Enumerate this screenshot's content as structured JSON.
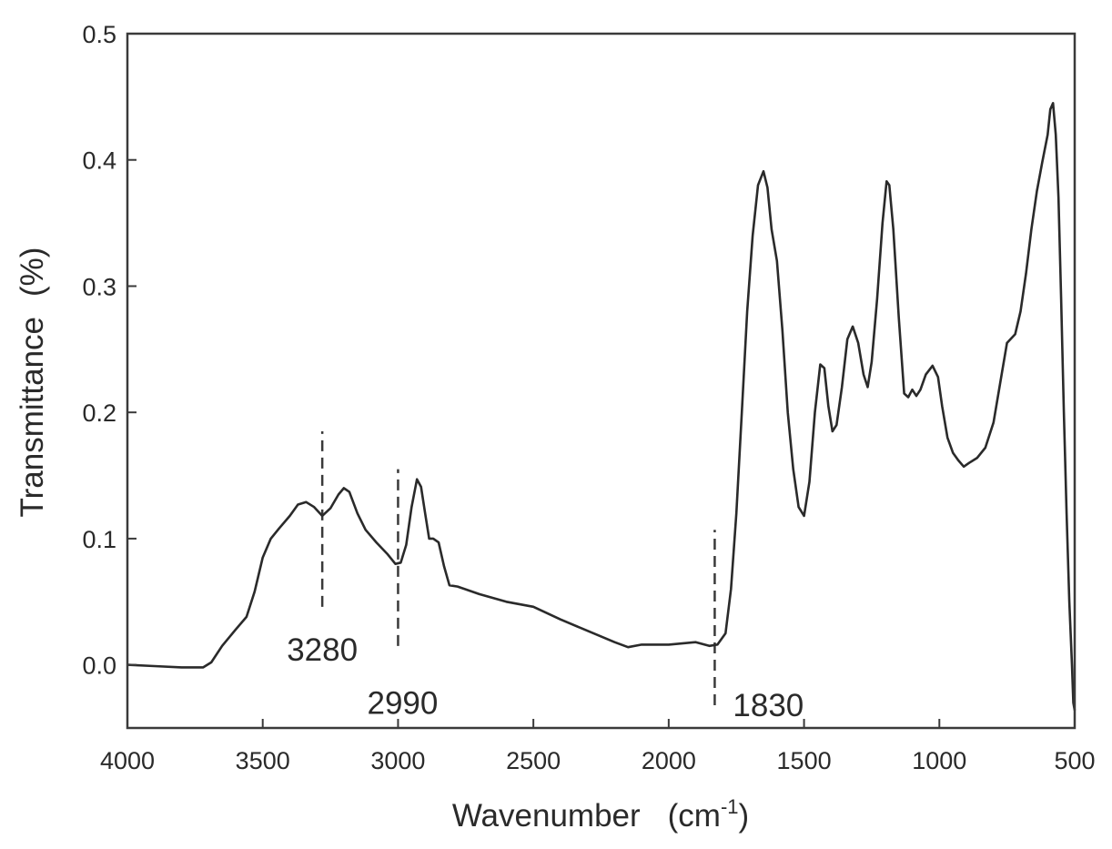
{
  "chart_data": {
    "type": "line",
    "title": "",
    "xlabel": "Wavenumber",
    "xlabel_unit_prefix": "(cm",
    "xlabel_unit_sup": "-1",
    "xlabel_unit_suffix": ")",
    "ylabel": "Transmittance",
    "ylabel_unit": "(%)",
    "xlim": [
      4000,
      500
    ],
    "ylim": [
      -0.05,
      0.5
    ],
    "x_reversed": true,
    "grid": false,
    "legend": "none",
    "x_ticks": [
      {
        "value": 4000,
        "label": "4000"
      },
      {
        "value": 3500,
        "label": "3500"
      },
      {
        "value": 3000,
        "label": "3000"
      },
      {
        "value": 2500,
        "label": "2500"
      },
      {
        "value": 2000,
        "label": "2000"
      },
      {
        "value": 1500,
        "label": "1500"
      },
      {
        "value": 1000,
        "label": "1000"
      },
      {
        "value": 500,
        "label": "500"
      }
    ],
    "y_ticks": [
      {
        "value": 0.0,
        "label": "0.0"
      },
      {
        "value": 0.1,
        "label": "0.1"
      },
      {
        "value": 0.2,
        "label": "0.2"
      },
      {
        "value": 0.3,
        "label": "0.3"
      },
      {
        "value": 0.4,
        "label": "0.4"
      },
      {
        "value": 0.5,
        "label": "0.5"
      }
    ],
    "annotations": [
      {
        "label": "3280",
        "x": 3280,
        "line_from": 0.046,
        "line_to": 0.185,
        "label_y": 0.012
      },
      {
        "label": "2990",
        "x": 3000,
        "line_from": 0.015,
        "line_to": 0.155,
        "label_y": -0.03
      },
      {
        "label": "1830",
        "x": 1830,
        "line_from": -0.032,
        "line_to": 0.107,
        "label_y": -0.032
      }
    ],
    "series": [
      {
        "color": "#2a2a2a",
        "points": [
          [
            4000,
            0.0
          ],
          [
            3900,
            -0.001
          ],
          [
            3800,
            -0.002
          ],
          [
            3720,
            -0.002
          ],
          [
            3690,
            0.002
          ],
          [
            3650,
            0.015
          ],
          [
            3600,
            0.028
          ],
          [
            3560,
            0.038
          ],
          [
            3530,
            0.058
          ],
          [
            3500,
            0.085
          ],
          [
            3470,
            0.1
          ],
          [
            3440,
            0.108
          ],
          [
            3400,
            0.118
          ],
          [
            3370,
            0.127
          ],
          [
            3340,
            0.129
          ],
          [
            3310,
            0.125
          ],
          [
            3280,
            0.118
          ],
          [
            3250,
            0.124
          ],
          [
            3220,
            0.135
          ],
          [
            3200,
            0.14
          ],
          [
            3180,
            0.137
          ],
          [
            3150,
            0.12
          ],
          [
            3120,
            0.107
          ],
          [
            3080,
            0.097
          ],
          [
            3040,
            0.088
          ],
          [
            3010,
            0.08
          ],
          [
            2990,
            0.081
          ],
          [
            2970,
            0.095
          ],
          [
            2950,
            0.125
          ],
          [
            2930,
            0.147
          ],
          [
            2915,
            0.141
          ],
          [
            2900,
            0.12
          ],
          [
            2885,
            0.1
          ],
          [
            2870,
            0.1
          ],
          [
            2850,
            0.097
          ],
          [
            2830,
            0.078
          ],
          [
            2810,
            0.063
          ],
          [
            2780,
            0.062
          ],
          [
            2700,
            0.056
          ],
          [
            2600,
            0.05
          ],
          [
            2500,
            0.046
          ],
          [
            2400,
            0.036
          ],
          [
            2300,
            0.027
          ],
          [
            2200,
            0.018
          ],
          [
            2150,
            0.014
          ],
          [
            2100,
            0.016
          ],
          [
            2000,
            0.016
          ],
          [
            1900,
            0.018
          ],
          [
            1850,
            0.015
          ],
          [
            1820,
            0.016
          ],
          [
            1790,
            0.025
          ],
          [
            1770,
            0.06
          ],
          [
            1750,
            0.12
          ],
          [
            1730,
            0.2
          ],
          [
            1710,
            0.28
          ],
          [
            1690,
            0.34
          ],
          [
            1670,
            0.38
          ],
          [
            1650,
            0.391
          ],
          [
            1635,
            0.378
          ],
          [
            1620,
            0.345
          ],
          [
            1600,
            0.32
          ],
          [
            1580,
            0.265
          ],
          [
            1560,
            0.2
          ],
          [
            1540,
            0.155
          ],
          [
            1520,
            0.125
          ],
          [
            1500,
            0.118
          ],
          [
            1480,
            0.145
          ],
          [
            1460,
            0.2
          ],
          [
            1440,
            0.238
          ],
          [
            1425,
            0.235
          ],
          [
            1410,
            0.205
          ],
          [
            1395,
            0.185
          ],
          [
            1380,
            0.19
          ],
          [
            1360,
            0.22
          ],
          [
            1340,
            0.258
          ],
          [
            1320,
            0.268
          ],
          [
            1300,
            0.255
          ],
          [
            1280,
            0.23
          ],
          [
            1265,
            0.22
          ],
          [
            1250,
            0.24
          ],
          [
            1230,
            0.29
          ],
          [
            1210,
            0.35
          ],
          [
            1195,
            0.383
          ],
          [
            1185,
            0.38
          ],
          [
            1170,
            0.345
          ],
          [
            1150,
            0.275
          ],
          [
            1130,
            0.215
          ],
          [
            1115,
            0.212
          ],
          [
            1100,
            0.218
          ],
          [
            1085,
            0.213
          ],
          [
            1070,
            0.218
          ],
          [
            1050,
            0.23
          ],
          [
            1025,
            0.237
          ],
          [
            1005,
            0.228
          ],
          [
            990,
            0.205
          ],
          [
            970,
            0.18
          ],
          [
            950,
            0.168
          ],
          [
            930,
            0.162
          ],
          [
            910,
            0.157
          ],
          [
            890,
            0.16
          ],
          [
            860,
            0.164
          ],
          [
            830,
            0.172
          ],
          [
            800,
            0.192
          ],
          [
            770,
            0.23
          ],
          [
            750,
            0.255
          ],
          [
            720,
            0.262
          ],
          [
            700,
            0.28
          ],
          [
            680,
            0.31
          ],
          [
            660,
            0.345
          ],
          [
            640,
            0.375
          ],
          [
            620,
            0.398
          ],
          [
            600,
            0.42
          ],
          [
            590,
            0.44
          ],
          [
            580,
            0.445
          ],
          [
            570,
            0.42
          ],
          [
            560,
            0.37
          ],
          [
            550,
            0.29
          ],
          [
            540,
            0.2
          ],
          [
            530,
            0.12
          ],
          [
            520,
            0.05
          ],
          [
            510,
            0.0
          ],
          [
            505,
            -0.03
          ],
          [
            500,
            -0.036
          ]
        ]
      }
    ]
  }
}
